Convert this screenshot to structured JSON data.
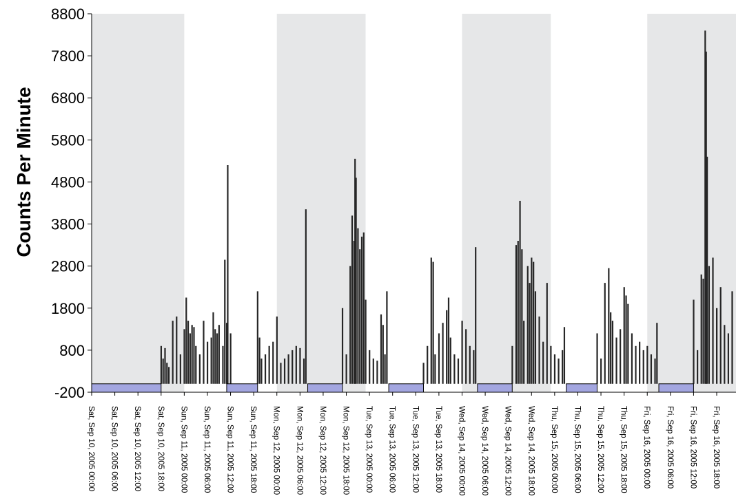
{
  "chart_data": {
    "type": "bar",
    "title": "",
    "xlabel": "",
    "ylabel": "Counts Per Minute",
    "ylim": [
      -200,
      8800
    ],
    "yticks": [
      -200,
      800,
      1800,
      2800,
      3800,
      4800,
      5800,
      6800,
      7800,
      8800
    ],
    "xlim": [
      "2005-09-10 00:00",
      "2005-09-16 23:00"
    ],
    "xtick_labels": [
      "Sat, Sep 10, 2005 00:00",
      "Sat, Sep 10, 2005 06:00",
      "Sat, Sep 10, 2005 12:00",
      "Sat, Sep 10, 2005 18:00",
      "Sun, Sep 11, 2005 00:00",
      "Sun, Sep 11, 2005 06:00",
      "Sun, Sep 11, 2005 12:00",
      "Sun, Sep 11, 2005 18:00",
      "Mon, Sep 12, 2005 00:00",
      "Mon, Sep 12, 2005 06:00",
      "Mon, Sep 12, 2005 12:00",
      "Mon, Sep 12, 2005 18:00",
      "Tue, Sep 13, 2005 00:00",
      "Tue, Sep 13, 2005 06:00",
      "Tue, Sep 13, 2005 12:00",
      "Tue, Sep 13, 2005 18:00",
      "Wed, Sep 14, 2005 00:00",
      "Wed, Sep 14, 2005 06:00",
      "Wed, Sep 14, 2005 12:00",
      "Wed, Sep 14, 2005 18:00",
      "Thu, Sep 15, 2005 00:00",
      "Thu, Sep 15, 2005 06:00",
      "Thu, Sep 15, 2005 12:00",
      "Thu, Sep 15, 2005 18:00",
      "Fri, Sep 16, 2005 00:00",
      "Fri, Sep 16, 2005 06:00",
      "Fri, Sep 16, 2005 12:00",
      "Fri, Sep 16, 2005 18:00"
    ],
    "shaded_periods": [
      [
        "2005-09-10 00:00",
        "2005-09-11 00:00"
      ],
      [
        "2005-09-12 00:00",
        "2005-09-12 23:00"
      ],
      [
        "2005-09-14 00:00",
        "2005-09-14 23:00"
      ],
      [
        "2005-09-16 00:00",
        "2005-09-16 23:00"
      ]
    ],
    "sleep_periods": [
      [
        "2005-09-10 00:00",
        "2005-09-10 18:00"
      ],
      [
        "2005-09-11 11:00",
        "2005-09-11 19:00"
      ],
      [
        "2005-09-12 08:00",
        "2005-09-12 17:00"
      ],
      [
        "2005-09-13 05:00",
        "2005-09-13 14:00"
      ],
      [
        "2005-09-14 04:00",
        "2005-09-14 13:00"
      ],
      [
        "2005-09-15 03:00",
        "2005-09-15 11:00"
      ],
      [
        "2005-09-16 03:00",
        "2005-09-16 12:00"
      ]
    ],
    "series": [
      {
        "values": [
          [
            "2005-09-10 18:00",
            900
          ],
          [
            "2005-09-10 18:30",
            600
          ],
          [
            "2005-09-10 19:00",
            850
          ],
          [
            "2005-09-10 19:30",
            500
          ],
          [
            "2005-09-10 20:00",
            400
          ],
          [
            "2005-09-10 21:00",
            1500
          ],
          [
            "2005-09-10 22:00",
            1600
          ],
          [
            "2005-09-10 23:00",
            700
          ],
          [
            "2005-09-11 00:00",
            1300
          ],
          [
            "2005-09-11 00:30",
            2050
          ],
          [
            "2005-09-11 01:00",
            1500
          ],
          [
            "2005-09-11 01:30",
            1200
          ],
          [
            "2005-09-11 02:00",
            1400
          ],
          [
            "2005-09-11 02:30",
            1350
          ],
          [
            "2005-09-11 03:00",
            900
          ],
          [
            "2005-09-11 04:00",
            700
          ],
          [
            "2005-09-11 05:00",
            1500
          ],
          [
            "2005-09-11 06:00",
            1000
          ],
          [
            "2005-09-11 07:00",
            1100
          ],
          [
            "2005-09-11 07:30",
            1700
          ],
          [
            "2005-09-11 08:00",
            1300
          ],
          [
            "2005-09-11 08:30",
            1200
          ],
          [
            "2005-09-11 09:00",
            1400
          ],
          [
            "2005-09-11 10:00",
            900
          ],
          [
            "2005-09-11 10:30",
            2950
          ],
          [
            "2005-09-11 11:00",
            1450
          ],
          [
            "2005-09-11 11:15",
            5200
          ],
          [
            "2005-09-11 12:00",
            1200
          ],
          [
            "2005-09-11 19:00",
            2200
          ],
          [
            "2005-09-11 19:30",
            1100
          ],
          [
            "2005-09-11 20:00",
            600
          ],
          [
            "2005-09-11 21:00",
            700
          ],
          [
            "2005-09-11 22:00",
            900
          ],
          [
            "2005-09-11 23:00",
            1000
          ],
          [
            "2005-09-12 00:00",
            1600
          ],
          [
            "2005-09-12 01:00",
            500
          ],
          [
            "2005-09-12 02:00",
            600
          ],
          [
            "2005-09-12 03:00",
            700
          ],
          [
            "2005-09-12 04:00",
            800
          ],
          [
            "2005-09-12 05:00",
            900
          ],
          [
            "2005-09-12 06:00",
            850
          ],
          [
            "2005-09-12 07:00",
            600
          ],
          [
            "2005-09-12 07:30",
            4150
          ],
          [
            "2005-09-12 17:00",
            1800
          ],
          [
            "2005-09-12 18:00",
            700
          ],
          [
            "2005-09-12 19:00",
            2800
          ],
          [
            "2005-09-12 19:30",
            4000
          ],
          [
            "2005-09-12 20:00",
            3400
          ],
          [
            "2005-09-12 20:15",
            5350
          ],
          [
            "2005-09-12 20:30",
            4900
          ],
          [
            "2005-09-12 21:00",
            3700
          ],
          [
            "2005-09-12 21:30",
            3200
          ],
          [
            "2005-09-12 22:00",
            3500
          ],
          [
            "2005-09-12 22:30",
            3600
          ],
          [
            "2005-09-12 23:00",
            2000
          ],
          [
            "2005-09-13 00:00",
            800
          ],
          [
            "2005-09-13 01:00",
            600
          ],
          [
            "2005-09-13 02:00",
            550
          ],
          [
            "2005-09-13 03:00",
            1650
          ],
          [
            "2005-09-13 03:30",
            1400
          ],
          [
            "2005-09-13 04:00",
            700
          ],
          [
            "2005-09-13 04:30",
            2200
          ],
          [
            "2005-09-13 14:00",
            500
          ],
          [
            "2005-09-13 15:00",
            900
          ],
          [
            "2005-09-13 16:00",
            3000
          ],
          [
            "2005-09-13 16:30",
            2900
          ],
          [
            "2005-09-13 17:00",
            700
          ],
          [
            "2005-09-13 18:00",
            1200
          ],
          [
            "2005-09-13 19:00",
            1450
          ],
          [
            "2005-09-13 20:00",
            1750
          ],
          [
            "2005-09-13 20:30",
            2050
          ],
          [
            "2005-09-13 21:00",
            1100
          ],
          [
            "2005-09-13 22:00",
            700
          ],
          [
            "2005-09-13 23:00",
            600
          ],
          [
            "2005-09-14 00:00",
            1500
          ],
          [
            "2005-09-14 01:00",
            1300
          ],
          [
            "2005-09-14 02:00",
            900
          ],
          [
            "2005-09-14 03:00",
            800
          ],
          [
            "2005-09-14 03:30",
            3250
          ],
          [
            "2005-09-14 13:00",
            900
          ],
          [
            "2005-09-14 14:00",
            3300
          ],
          [
            "2005-09-14 14:30",
            3400
          ],
          [
            "2005-09-14 15:00",
            4350
          ],
          [
            "2005-09-14 15:30",
            3200
          ],
          [
            "2005-09-14 16:00",
            1500
          ],
          [
            "2005-09-14 17:00",
            2800
          ],
          [
            "2005-09-14 17:30",
            2400
          ],
          [
            "2005-09-14 18:00",
            3000
          ],
          [
            "2005-09-14 18:30",
            2900
          ],
          [
            "2005-09-14 19:00",
            2200
          ],
          [
            "2005-09-14 20:00",
            1600
          ],
          [
            "2005-09-14 21:00",
            1000
          ],
          [
            "2005-09-14 22:00",
            2400
          ],
          [
            "2005-09-14 23:00",
            900
          ],
          [
            "2005-09-15 00:00",
            700
          ],
          [
            "2005-09-15 01:00",
            600
          ],
          [
            "2005-09-15 02:00",
            800
          ],
          [
            "2005-09-15 02:30",
            1350
          ],
          [
            "2005-09-15 11:00",
            1200
          ],
          [
            "2005-09-15 12:00",
            600
          ],
          [
            "2005-09-15 13:00",
            2400
          ],
          [
            "2005-09-15 14:00",
            2750
          ],
          [
            "2005-09-15 14:30",
            1700
          ],
          [
            "2005-09-15 15:00",
            1500
          ],
          [
            "2005-09-15 16:00",
            1100
          ],
          [
            "2005-09-15 17:00",
            1300
          ],
          [
            "2005-09-15 18:00",
            2300
          ],
          [
            "2005-09-15 18:30",
            2100
          ],
          [
            "2005-09-15 19:00",
            1900
          ],
          [
            "2005-09-15 20:00",
            1200
          ],
          [
            "2005-09-15 21:00",
            900
          ],
          [
            "2005-09-15 22:00",
            1000
          ],
          [
            "2005-09-15 23:00",
            800
          ],
          [
            "2005-09-16 00:00",
            900
          ],
          [
            "2005-09-16 01:00",
            700
          ],
          [
            "2005-09-16 02:00",
            600
          ],
          [
            "2005-09-16 02:30",
            1450
          ],
          [
            "2005-09-16 12:00",
            2000
          ],
          [
            "2005-09-16 13:00",
            800
          ],
          [
            "2005-09-16 14:00",
            2600
          ],
          [
            "2005-09-16 14:30",
            2500
          ],
          [
            "2005-09-16 15:00",
            8400
          ],
          [
            "2005-09-16 15:15",
            7900
          ],
          [
            "2005-09-16 15:30",
            5400
          ],
          [
            "2005-09-16 16:00",
            2800
          ],
          [
            "2005-09-16 17:00",
            3000
          ],
          [
            "2005-09-16 18:00",
            1800
          ],
          [
            "2005-09-16 19:00",
            2300
          ],
          [
            "2005-09-16 20:00",
            1400
          ],
          [
            "2005-09-16 21:00",
            1200
          ],
          [
            "2005-09-16 22:00",
            2200
          ]
        ]
      }
    ],
    "grid": false,
    "colors": {
      "bars": "#262626",
      "shade": "#e6e7e8",
      "sleep_fill": "#a3a6e0",
      "sleep_stroke": "#000000"
    }
  }
}
